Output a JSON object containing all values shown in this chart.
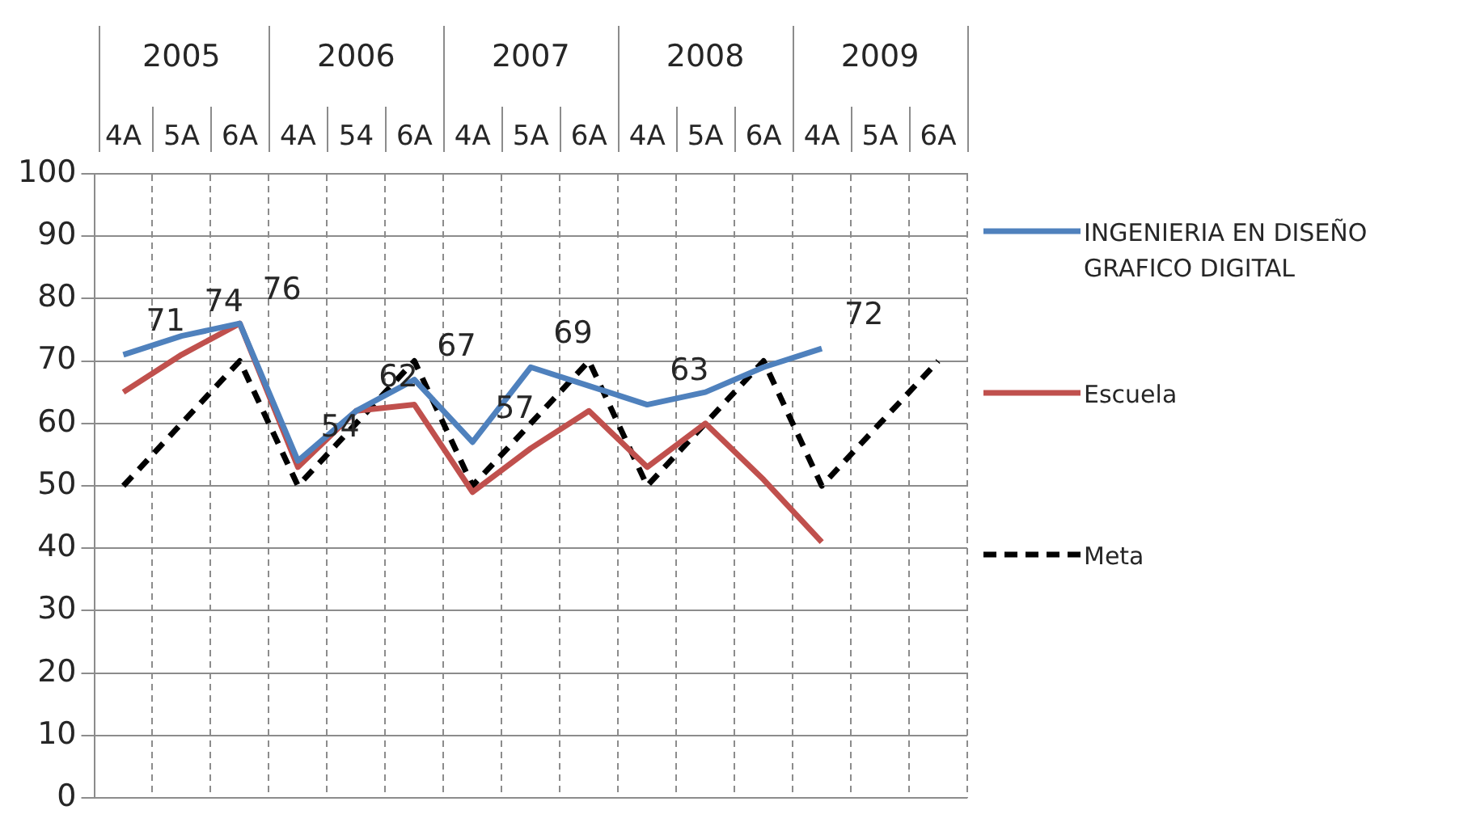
{
  "chart_data": {
    "type": "line",
    "categories": [
      "4A",
      "5A",
      "6A",
      "4A",
      "54",
      "6A",
      "4A",
      "5A",
      "6A",
      "4A",
      "5A",
      "6A",
      "4A",
      "5A",
      "6A"
    ],
    "annotations": [
      "2005",
      "2006",
      "2007",
      "2008",
      "2009"
    ],
    "series": [
      {
        "name": "INGENIERIA EN DISEÑO GRAFICO DIGITAL",
        "color": "#4f81bd",
        "values": [
          71,
          74,
          76,
          54,
          62,
          67,
          57,
          69,
          66,
          63,
          65,
          69,
          72,
          null,
          null
        ],
        "value_labels": [
          "71",
          "74",
          "76",
          "54",
          "62",
          "67",
          "57",
          "69",
          null,
          "63",
          null,
          null,
          "72",
          null,
          null
        ]
      },
      {
        "name": "Escuela",
        "color": "#c0504d",
        "values": [
          65,
          71,
          76,
          53,
          62,
          63,
          49,
          56,
          62,
          53,
          60,
          51,
          41,
          null,
          null
        ]
      },
      {
        "name": "Meta",
        "color": "#000000",
        "line_style": "dashed",
        "values": [
          50,
          60,
          70,
          50,
          60,
          70,
          50,
          60,
          70,
          50,
          60,
          70,
          50,
          60,
          70
        ]
      }
    ],
    "ylim": [
      0,
      100
    ],
    "yticks": [
      0,
      10,
      20,
      30,
      40,
      50,
      60,
      70,
      80,
      90,
      100
    ],
    "grid": true,
    "legend": "right",
    "marker": "none"
  }
}
